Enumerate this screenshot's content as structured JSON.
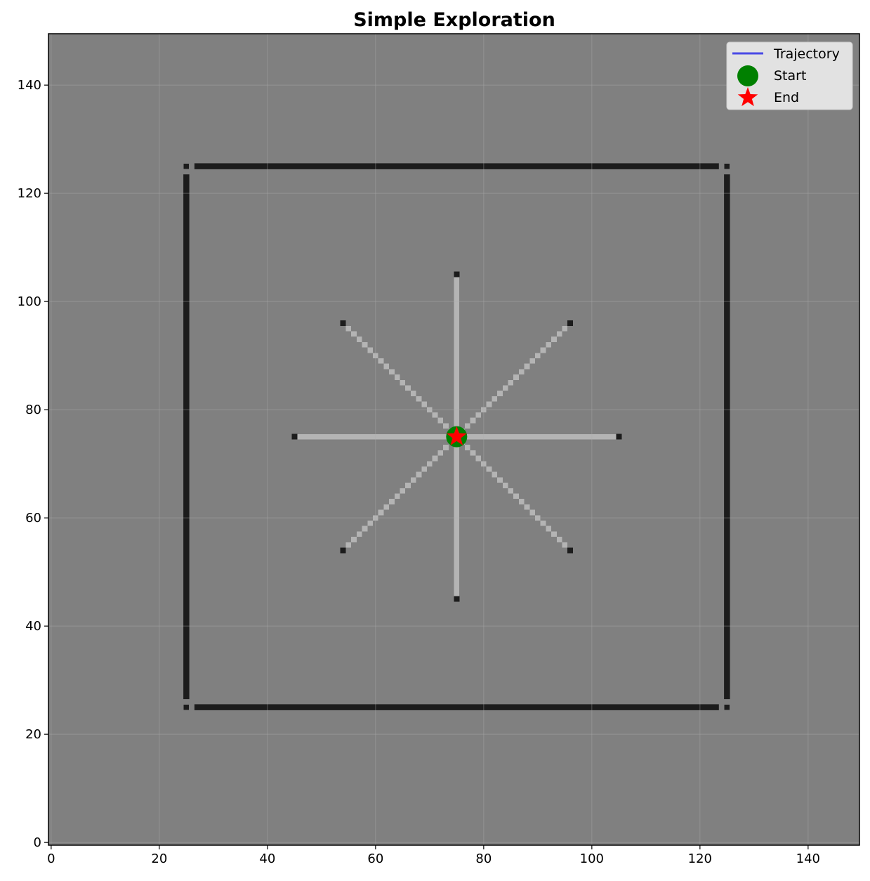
{
  "chart_data": {
    "type": "occupancy_grid_map",
    "title": "Simple Exploration",
    "xlabel": "",
    "ylabel": "",
    "xlim": [
      -0.5,
      149.5
    ],
    "ylim": [
      -0.5,
      149.5
    ],
    "grid": true,
    "x_ticks": [
      0,
      20,
      40,
      60,
      80,
      100,
      120,
      140
    ],
    "y_ticks": [
      0,
      20,
      40,
      60,
      80,
      100,
      120,
      140
    ],
    "colors": {
      "unknown": "#808080",
      "occupied": "#1c1c1c",
      "free": "#b4b4b4",
      "trajectory": "#4a4ae6",
      "start": "#008000",
      "end": "#ff0000"
    },
    "walls": {
      "x_min": 25,
      "x_max": 125,
      "y_min": 25,
      "y_max": 125,
      "gap_cells": 1
    },
    "ray_origin": [
      75,
      75
    ],
    "ray_endpoints": [
      [
        105,
        75
      ],
      [
        96,
        96
      ],
      [
        75,
        105
      ],
      [
        54,
        96
      ],
      [
        45,
        75
      ],
      [
        54,
        54
      ],
      [
        75,
        45
      ],
      [
        96,
        54
      ]
    ],
    "series": [
      {
        "name": "Trajectory",
        "type": "line",
        "points": [
          [
            75,
            75
          ]
        ]
      },
      {
        "name": "Start",
        "type": "marker",
        "marker": "circle",
        "points": [
          [
            75,
            75
          ]
        ]
      },
      {
        "name": "End",
        "type": "marker",
        "marker": "star",
        "points": [
          [
            75,
            75
          ]
        ]
      }
    ],
    "legend": {
      "position": "top-right",
      "entries": [
        "Trajectory",
        "Start",
        "End"
      ]
    }
  }
}
